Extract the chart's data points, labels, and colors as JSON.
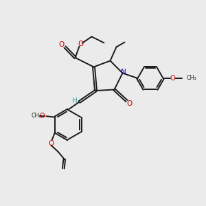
{
  "bg_color": "#ebebeb",
  "bond_color": "#1a1a1a",
  "oxygen_color": "#cc0000",
  "nitrogen_color": "#0000cc",
  "hydrogen_color": "#339999",
  "figsize": [
    3.0,
    3.0
  ],
  "dpi": 100,
  "xlim": [
    0,
    10
  ],
  "ylim": [
    0,
    10
  ]
}
